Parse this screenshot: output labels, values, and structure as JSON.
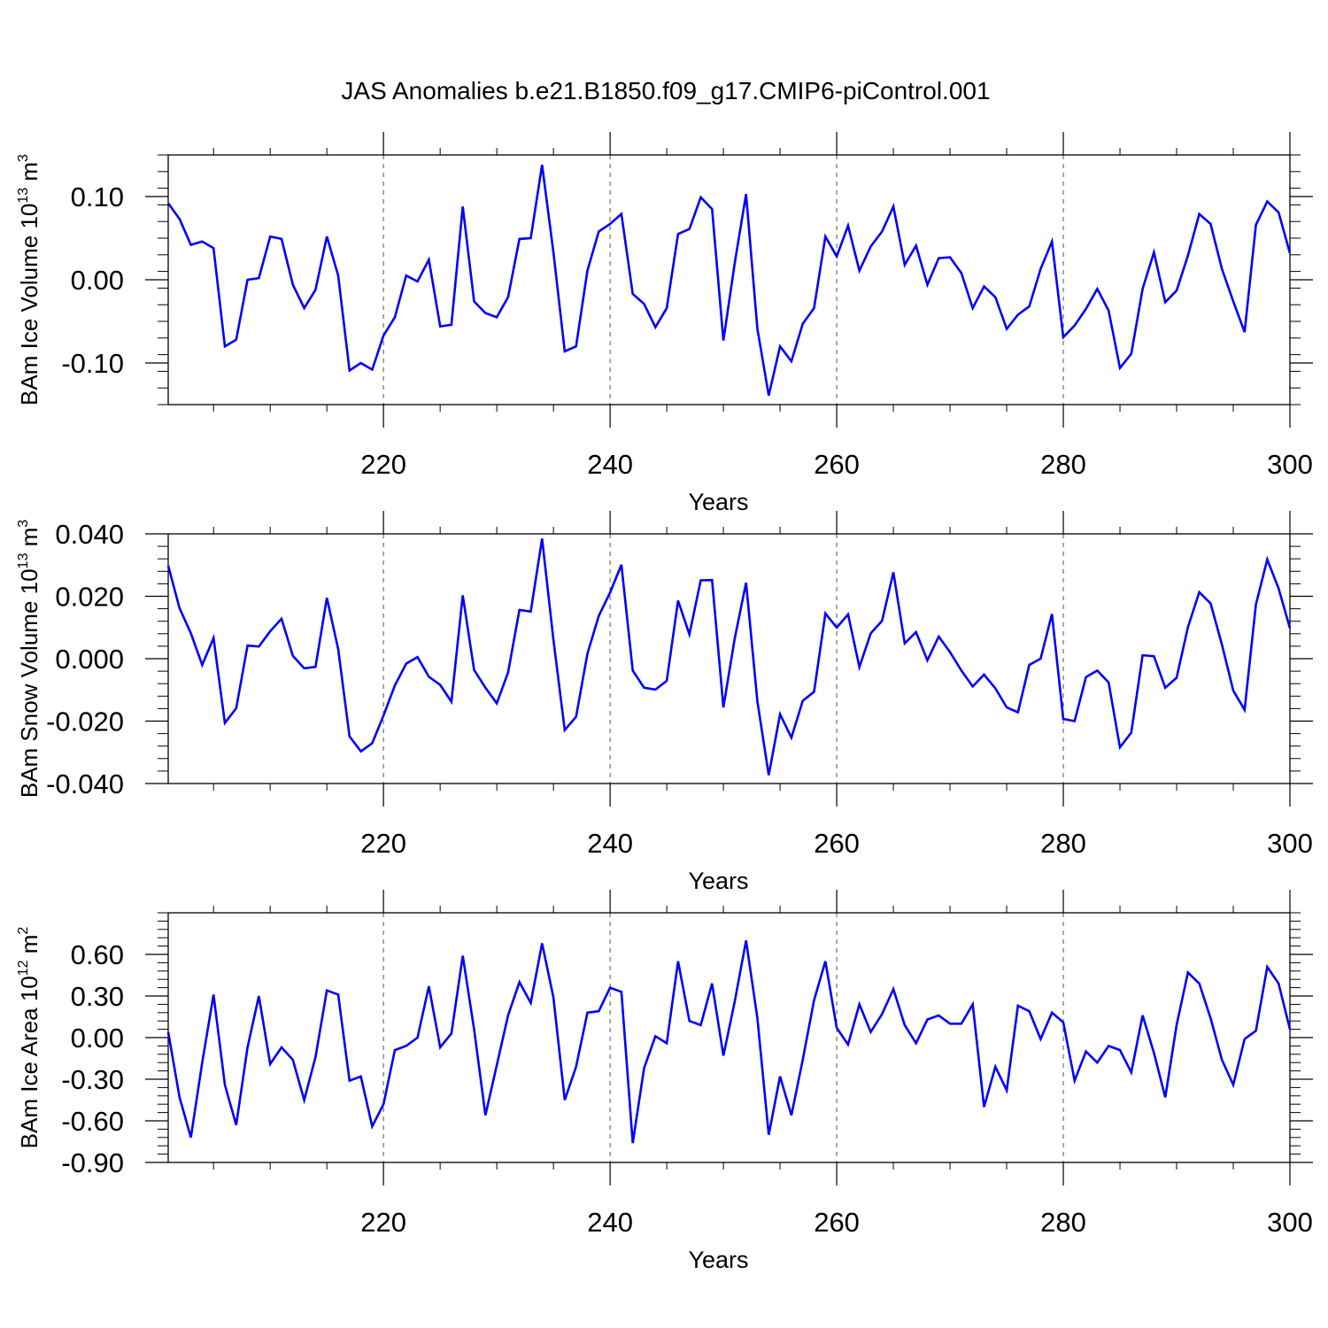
{
  "figure_title": "JAS Anomalies b.e21.B1850.f09_g17.CMIP6-piControl.001",
  "colors": {
    "line": "#0000ff",
    "axis": "#000000",
    "grid": "#555555"
  },
  "chart_data": [
    {
      "type": "line",
      "title": "JAS Anomalies b.e21.B1850.f09_g17.CMIP6-piControl.001",
      "xlabel": "Years",
      "ylabel": {
        "prefix": "BAm Ice Volume 10",
        "exponent": "13",
        "unit": " m",
        "unit_exponent": "3"
      },
      "xlim": [
        201,
        300
      ],
      "ylim": [
        -0.15,
        0.15
      ],
      "xticks": [
        220,
        240,
        260,
        280,
        300
      ],
      "yticks": [
        -0.1,
        0.0,
        0.1
      ],
      "ytick_labels": [
        "-0.10",
        "0.00",
        "0.10"
      ],
      "grid": "dashed vertical at major x ticks",
      "series": [
        {
          "x": [
            201,
            202,
            203,
            204,
            205,
            206,
            207,
            208,
            209,
            210,
            211,
            212,
            213,
            214,
            215,
            216,
            217,
            218,
            219,
            220,
            221,
            222,
            223,
            224,
            225,
            226,
            227,
            228,
            229,
            230,
            231,
            232,
            233,
            234,
            235,
            236,
            237,
            238,
            239,
            240,
            241,
            242,
            243,
            244,
            245,
            246,
            247,
            248,
            249,
            250,
            251,
            252,
            253,
            254,
            255,
            256,
            257,
            258,
            259,
            260,
            261,
            262,
            263,
            264,
            265,
            266,
            267,
            268,
            269,
            270,
            271,
            272,
            273,
            274,
            275,
            276,
            277,
            278,
            279,
            280,
            281,
            282,
            283,
            284,
            285,
            286,
            287,
            288,
            289,
            290,
            291,
            292,
            293,
            294,
            295,
            296,
            297,
            298,
            299,
            300
          ],
          "y": [
            0.092,
            0.073,
            0.042,
            0.046,
            0.038,
            -0.08,
            -0.072,
            0.0,
            0.002,
            0.052,
            0.049,
            -0.006,
            -0.034,
            -0.012,
            0.052,
            0.005,
            -0.109,
            -0.1,
            -0.108,
            -0.067,
            -0.045,
            0.005,
            -0.002,
            0.024,
            -0.056,
            -0.054,
            0.088,
            -0.026,
            -0.04,
            -0.045,
            -0.021,
            0.049,
            0.05,
            0.138,
            0.033,
            -0.086,
            -0.08,
            0.011,
            0.058,
            0.067,
            0.079,
            -0.017,
            -0.029,
            -0.057,
            -0.034,
            0.055,
            0.061,
            0.099,
            0.085,
            -0.073,
            0.02,
            0.103,
            -0.059,
            -0.139,
            -0.08,
            -0.098,
            -0.053,
            -0.034,
            0.052,
            0.028,
            0.065,
            0.011,
            0.04,
            0.058,
            0.088,
            0.018,
            0.041,
            -0.006,
            0.026,
            0.027,
            0.008,
            -0.034,
            -0.008,
            -0.021,
            -0.059,
            -0.042,
            -0.032,
            0.013,
            0.046,
            -0.069,
            -0.055,
            -0.035,
            -0.011,
            -0.037,
            -0.106,
            -0.089,
            -0.011,
            0.033,
            -0.027,
            -0.013,
            0.029,
            0.079,
            0.067,
            0.013,
            -0.026,
            -0.063,
            0.066,
            0.094,
            0.081,
            0.032
          ]
        }
      ]
    },
    {
      "type": "line",
      "xlabel": "Years",
      "ylabel": {
        "prefix": "BAm Snow Volume 10",
        "exponent": "13",
        "unit": " m",
        "unit_exponent": "3"
      },
      "xlim": [
        201,
        300
      ],
      "ylim": [
        -0.04,
        0.04
      ],
      "xticks": [
        220,
        240,
        260,
        280,
        300
      ],
      "yticks": [
        -0.04,
        -0.02,
        0.0,
        0.02,
        0.04
      ],
      "ytick_labels": [
        "-0.040",
        "-0.020",
        "0.000",
        "0.020",
        "0.040"
      ],
      "grid": "dashed vertical at major x ticks",
      "series": [
        {
          "x": [
            201,
            202,
            203,
            204,
            205,
            206,
            207,
            208,
            209,
            210,
            211,
            212,
            213,
            214,
            215,
            216,
            217,
            218,
            219,
            220,
            221,
            222,
            223,
            224,
            225,
            226,
            227,
            228,
            229,
            230,
            231,
            232,
            233,
            234,
            235,
            236,
            237,
            238,
            239,
            240,
            241,
            242,
            243,
            244,
            245,
            246,
            247,
            248,
            249,
            250,
            251,
            252,
            253,
            254,
            255,
            256,
            257,
            258,
            259,
            260,
            261,
            262,
            263,
            264,
            265,
            266,
            267,
            268,
            269,
            270,
            271,
            272,
            273,
            274,
            275,
            276,
            277,
            278,
            279,
            280,
            281,
            282,
            283,
            284,
            285,
            286,
            287,
            288,
            289,
            290,
            291,
            292,
            293,
            294,
            295,
            296,
            297,
            298,
            299,
            300
          ],
          "y": [
            0.0298,
            0.0162,
            0.0081,
            -0.002,
            0.0066,
            -0.0206,
            -0.0159,
            0.0042,
            0.0039,
            0.0088,
            0.0128,
            0.0009,
            -0.0031,
            -0.0026,
            0.0195,
            0.0031,
            -0.0249,
            -0.0297,
            -0.0271,
            -0.0182,
            -0.0086,
            -0.0016,
            0.0005,
            -0.0058,
            -0.0084,
            -0.0138,
            0.0203,
            -0.0036,
            -0.0093,
            -0.0143,
            -0.0044,
            0.0156,
            0.0151,
            0.0385,
            0.0061,
            -0.0229,
            -0.0186,
            0.0016,
            0.0137,
            0.0212,
            0.0301,
            -0.0038,
            -0.0093,
            -0.0099,
            -0.0071,
            0.0186,
            0.0078,
            0.0251,
            0.0252,
            -0.0156,
            0.0065,
            0.0243,
            -0.0137,
            -0.0373,
            -0.0178,
            -0.0253,
            -0.0135,
            -0.0106,
            0.0145,
            0.01,
            0.0142,
            -0.0027,
            0.0081,
            0.0121,
            0.0277,
            0.0049,
            0.0085,
            -0.0005,
            0.0071,
            0.0021,
            -0.0038,
            -0.0089,
            -0.0051,
            -0.0095,
            -0.0156,
            -0.0172,
            -0.002,
            0.0,
            0.0143,
            -0.0193,
            -0.02,
            -0.0059,
            -0.0038,
            -0.0076,
            -0.0284,
            -0.0237,
            0.0011,
            0.0008,
            -0.0093,
            -0.0061,
            0.0101,
            0.0213,
            0.0177,
            0.0045,
            -0.0102,
            -0.0164,
            0.0174,
            0.0318,
            0.0225,
            0.0098
          ]
        }
      ]
    },
    {
      "type": "line",
      "xlabel": "Years",
      "ylabel": {
        "prefix": "BAm Ice Area 10",
        "exponent": "12",
        "unit": " m",
        "unit_exponent": "2"
      },
      "xlim": [
        201,
        300
      ],
      "ylim": [
        -0.9,
        0.9
      ],
      "xticks": [
        220,
        240,
        260,
        280,
        300
      ],
      "yticks": [
        -0.9,
        -0.6,
        -0.3,
        0.0,
        0.3,
        0.6
      ],
      "ytick_labels": [
        "-0.90",
        "-0.60",
        "-0.30",
        "0.00",
        "0.30",
        "0.60"
      ],
      "grid": "dashed vertical at major x ticks",
      "series": [
        {
          "x": [
            201,
            202,
            203,
            204,
            205,
            206,
            207,
            208,
            209,
            210,
            211,
            212,
            213,
            214,
            215,
            216,
            217,
            218,
            219,
            220,
            221,
            222,
            223,
            224,
            225,
            226,
            227,
            228,
            229,
            230,
            231,
            232,
            233,
            234,
            235,
            236,
            237,
            238,
            239,
            240,
            241,
            242,
            243,
            244,
            245,
            246,
            247,
            248,
            249,
            250,
            251,
            252,
            253,
            254,
            255,
            256,
            257,
            258,
            259,
            260,
            261,
            262,
            263,
            264,
            265,
            266,
            267,
            268,
            269,
            270,
            271,
            272,
            273,
            274,
            275,
            276,
            277,
            278,
            279,
            280,
            281,
            282,
            283,
            284,
            285,
            286,
            287,
            288,
            289,
            290,
            291,
            292,
            293,
            294,
            295,
            296,
            297,
            298,
            299,
            300
          ],
          "y": [
            0.04,
            -0.43,
            -0.72,
            -0.18,
            0.31,
            -0.34,
            -0.63,
            -0.07,
            0.3,
            -0.19,
            -0.07,
            -0.16,
            -0.45,
            -0.14,
            0.34,
            0.31,
            -0.31,
            -0.28,
            -0.64,
            -0.48,
            -0.09,
            -0.06,
            0.0,
            0.37,
            -0.07,
            0.03,
            0.59,
            0.06,
            -0.56,
            -0.2,
            0.16,
            0.4,
            0.25,
            0.68,
            0.29,
            -0.45,
            -0.21,
            0.18,
            0.19,
            0.36,
            0.33,
            -0.76,
            -0.22,
            0.01,
            -0.04,
            0.55,
            0.12,
            0.09,
            0.39,
            -0.13,
            0.26,
            0.7,
            0.14,
            -0.7,
            -0.28,
            -0.56,
            -0.16,
            0.27,
            0.55,
            0.07,
            -0.05,
            0.24,
            0.04,
            0.17,
            0.35,
            0.09,
            -0.04,
            0.13,
            0.16,
            0.1,
            0.1,
            0.24,
            -0.5,
            -0.21,
            -0.38,
            0.23,
            0.19,
            -0.01,
            0.18,
            0.11,
            -0.31,
            -0.1,
            -0.18,
            -0.06,
            -0.09,
            -0.25,
            0.16,
            -0.11,
            -0.43,
            0.09,
            0.47,
            0.39,
            0.14,
            -0.16,
            -0.34,
            -0.01,
            0.05,
            0.51,
            0.39,
            0.06
          ]
        }
      ]
    }
  ]
}
